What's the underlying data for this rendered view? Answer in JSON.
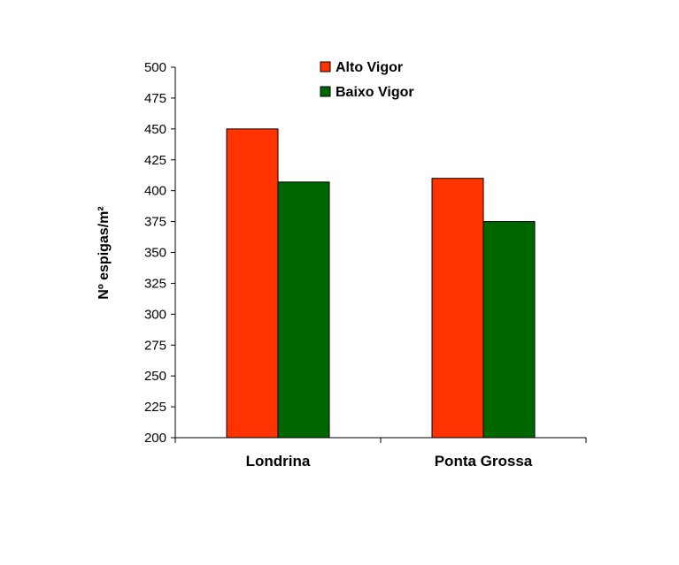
{
  "chart_data": {
    "type": "bar",
    "title": "",
    "xlabel": "",
    "ylabel": "Nº espigas/m²",
    "ylim": [
      200,
      500
    ],
    "yticks": [
      200,
      225,
      250,
      275,
      300,
      325,
      350,
      375,
      400,
      425,
      450,
      475,
      500
    ],
    "categories": [
      "Londrina",
      "Ponta Grossa"
    ],
    "series": [
      {
        "name": "Alto Vigor",
        "color": "#ff3300",
        "values": [
          450,
          410
        ]
      },
      {
        "name": "Baixo Vigor",
        "color": "#006600",
        "values": [
          407,
          375
        ]
      }
    ],
    "grid": false,
    "legend": "top-center"
  }
}
